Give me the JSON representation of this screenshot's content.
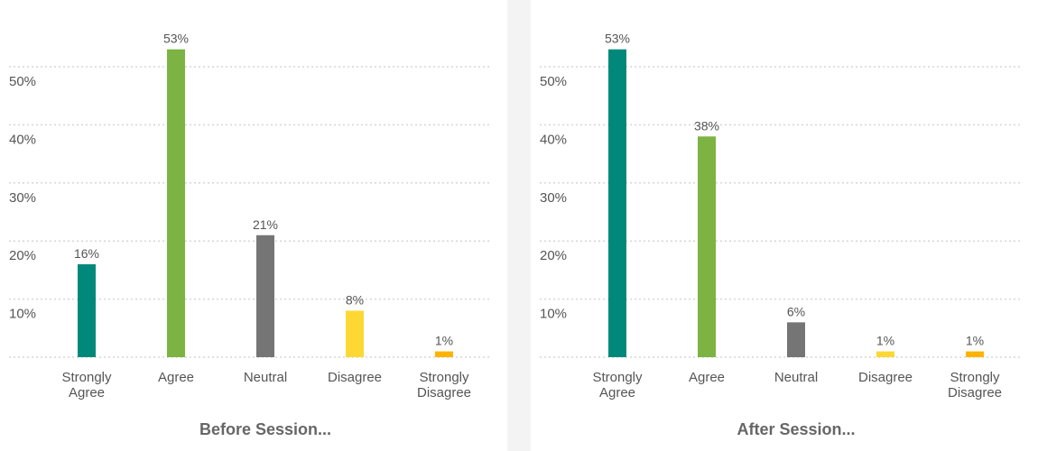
{
  "colors": {
    "strongly_agree": "#00897b",
    "agree": "#7cb342",
    "neutral": "#757575",
    "disagree": "#fdd835",
    "strongly_disagree": "#ffb300",
    "grid": "#d6d6d6",
    "text": "#555555"
  },
  "chart_data": [
    {
      "type": "bar",
      "title": "Before Session...",
      "categories": [
        [
          "Strongly",
          "Agree"
        ],
        [
          "Agree"
        ],
        [
          "Neutral"
        ],
        [
          "Disagree"
        ],
        [
          "Strongly",
          "Disagree"
        ]
      ],
      "values": [
        16,
        53,
        21,
        8,
        1
      ],
      "value_labels": [
        "16%",
        "53%",
        "21%",
        "8%",
        "1%"
      ],
      "yticks": [
        "10%",
        "20%",
        "30%",
        "40%",
        "50%"
      ],
      "ytick_values": [
        10,
        20,
        30,
        40,
        50
      ],
      "ylim": [
        0,
        55
      ],
      "xlabel": "",
      "ylabel": "",
      "grid": true
    },
    {
      "type": "bar",
      "title": "After Session...",
      "categories": [
        [
          "Strongly",
          "Agree"
        ],
        [
          "Agree"
        ],
        [
          "Neutral"
        ],
        [
          "Disagree"
        ],
        [
          "Strongly",
          "Disagree"
        ]
      ],
      "values": [
        53,
        38,
        6,
        1,
        1
      ],
      "value_labels": [
        "53%",
        "38%",
        "6%",
        "1%",
        "1%"
      ],
      "yticks": [
        "10%",
        "20%",
        "30%",
        "40%",
        "50%"
      ],
      "ytick_values": [
        10,
        20,
        30,
        40,
        50
      ],
      "ylim": [
        0,
        55
      ],
      "xlabel": "",
      "ylabel": "",
      "grid": true
    }
  ]
}
